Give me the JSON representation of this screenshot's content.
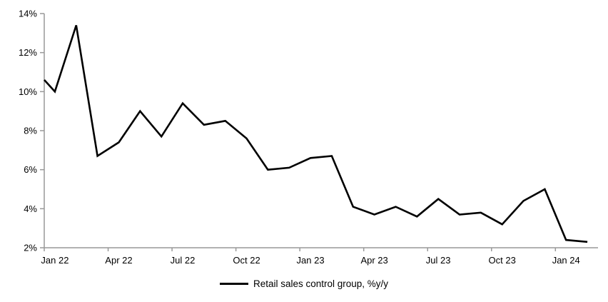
{
  "chart_data": {
    "type": "line",
    "title": "",
    "xlabel": "",
    "ylabel": "",
    "x": [
      "Jan 22",
      "Feb 22",
      "Mar 22",
      "Apr 22",
      "May 22",
      "Jun 22",
      "Jul 22",
      "Aug 22",
      "Sep 22",
      "Oct 22",
      "Nov 22",
      "Dec 22",
      "Jan 23",
      "Feb 23",
      "Mar 23",
      "Apr 23",
      "May 23",
      "Jun 23",
      "Jul 23",
      "Aug 23",
      "Sep 23",
      "Oct 23",
      "Nov 23",
      "Dec 23",
      "Jan 24",
      "Feb 24"
    ],
    "values": [
      10.0,
      13.4,
      6.7,
      7.4,
      9.0,
      7.7,
      9.4,
      8.3,
      8.5,
      7.6,
      6.0,
      6.1,
      6.6,
      6.7,
      4.1,
      3.7,
      4.1,
      3.6,
      4.5,
      3.7,
      3.8,
      3.2,
      4.4,
      5.0,
      2.4,
      2.3
    ],
    "left_edge_entry_value": 10.6,
    "ylim": [
      2,
      14
    ],
    "y_tick_step": 2,
    "y_tick_labels": [
      "2%",
      "4%",
      "6%",
      "8%",
      "10%",
      "12%",
      "14%"
    ],
    "x_tick_labels": [
      "Jan 22",
      "Apr 22",
      "Jul 22",
      "Oct 22",
      "Jan 23",
      "Apr 23",
      "Jul 23",
      "Oct 23",
      "Jan 24"
    ],
    "x_tick_interval_months": 3,
    "grid": false,
    "line_color": "#000000",
    "axis_color": "#999999",
    "legend": {
      "position": "bottom-center",
      "entries": [
        {
          "label": "Retail sales control group, %y/y",
          "color": "#000000"
        }
      ]
    }
  }
}
